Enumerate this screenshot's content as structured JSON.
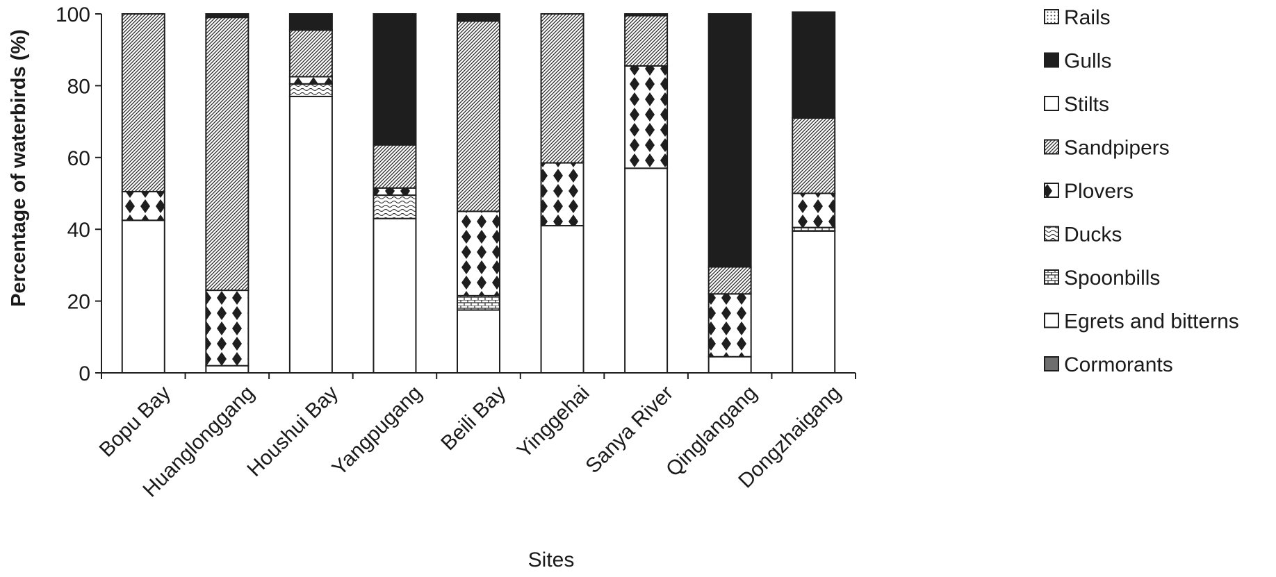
{
  "chart_data": {
    "type": "bar",
    "stacked": true,
    "title": "",
    "xlabel": "Sites",
    "ylabel": "Percentage of waterbirds (%)",
    "ylim": [
      0,
      100
    ],
    "yticks": [
      "0",
      "20",
      "40",
      "60",
      "80",
      "100"
    ],
    "grid": false,
    "legend_position": "right",
    "categories": [
      "Bopu Bay",
      "Huanglonggang",
      "Houshui Bay",
      "Yangpugang",
      "Beili Bay",
      "Yinggehai",
      "Sanya River",
      "Qinglangang",
      "Dongzhaigang"
    ],
    "series": [
      {
        "name": "Cormorants",
        "pattern": "gray-solid",
        "values": [
          0,
          0,
          0,
          0,
          0,
          0,
          0,
          0,
          0
        ]
      },
      {
        "name": "Egrets and bitterns",
        "pattern": "white",
        "values": [
          42.5,
          2,
          77,
          43,
          17.5,
          41,
          57,
          4.5,
          39.5
        ]
      },
      {
        "name": "Spoonbills",
        "pattern": "brick",
        "values": [
          0,
          0,
          0,
          0,
          4,
          0,
          0,
          0,
          1
        ]
      },
      {
        "name": "Ducks",
        "pattern": "wave",
        "values": [
          0,
          0,
          3.5,
          6.5,
          0,
          0,
          0,
          0,
          0
        ]
      },
      {
        "name": "Plovers",
        "pattern": "diamonds",
        "values": [
          8,
          21,
          2,
          2,
          23.5,
          17.5,
          28.5,
          17.5,
          9.5
        ]
      },
      {
        "name": "Sandpipers",
        "pattern": "diagonal",
        "values": [
          49.5,
          76,
          13,
          12,
          53,
          41.5,
          14,
          7.5,
          21
        ]
      },
      {
        "name": "Stilts",
        "pattern": "white",
        "values": [
          0,
          0,
          0,
          0,
          0,
          0,
          0,
          0,
          0
        ]
      },
      {
        "name": "Gulls",
        "pattern": "black",
        "values": [
          0,
          1,
          4.5,
          36.5,
          2,
          0,
          0.5,
          70.5,
          29.5
        ]
      },
      {
        "name": "Rails",
        "pattern": "dots",
        "values": [
          0,
          0,
          0,
          0,
          0,
          0,
          0,
          0,
          0
        ]
      }
    ]
  }
}
